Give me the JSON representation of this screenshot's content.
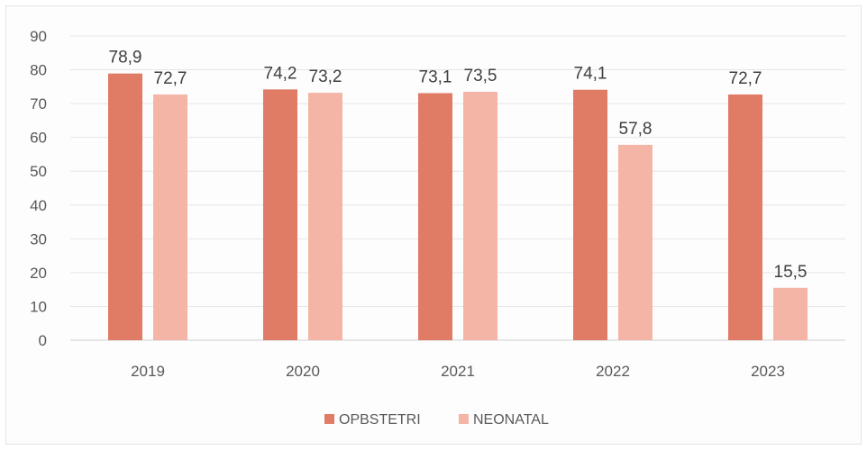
{
  "chart_data": {
    "type": "bar",
    "categories": [
      "2019",
      "2020",
      "2021",
      "2022",
      "2023"
    ],
    "series": [
      {
        "name": "OPBSTETRI",
        "color": "#e07b65",
        "values": [
          78.9,
          74.2,
          73.1,
          74.1,
          72.7
        ],
        "labels": [
          "78,9",
          "74,2",
          "73,1",
          "74,1",
          "72,7"
        ]
      },
      {
        "name": "NEONATAL",
        "color": "#f5b5a6",
        "values": [
          72.7,
          73.2,
          73.5,
          57.8,
          15.5
        ],
        "labels": [
          "72,7",
          "73,2",
          "73,5",
          "57,8",
          "15,5"
        ]
      }
    ],
    "y_ticks": [
      "0",
      "10",
      "20",
      "30",
      "40",
      "50",
      "60",
      "70",
      "80",
      "90"
    ],
    "ylim": [
      0,
      90
    ],
    "grid": true,
    "legend_position": "bottom"
  }
}
